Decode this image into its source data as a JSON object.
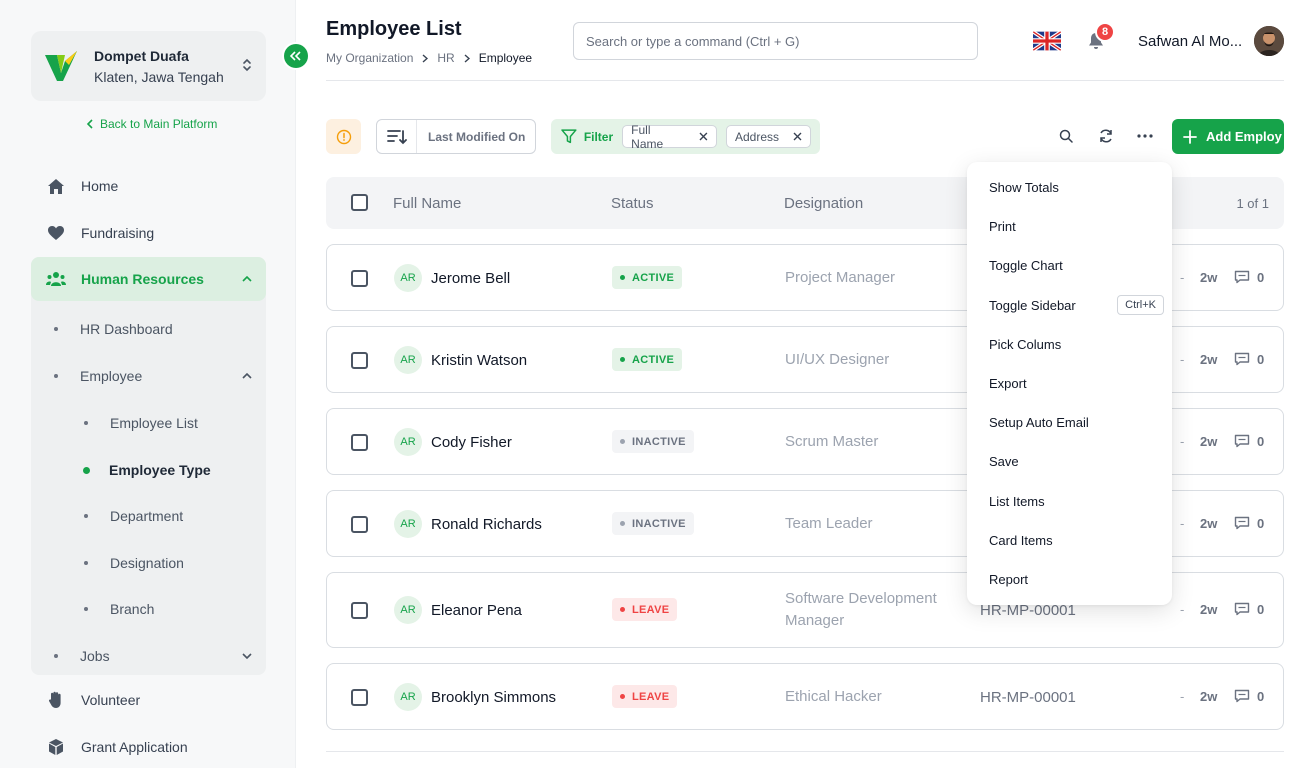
{
  "sidebar": {
    "org_name": "Dompet Duafa",
    "org_location": "Klaten, Jawa Tengah",
    "back_link": "Back to Main Platform",
    "nav": {
      "home": "Home",
      "fundraising": "Fundraising",
      "human_resources": "Human Resources",
      "hr_dashboard": "HR Dashboard",
      "employee": "Employee",
      "employee_list": "Employee List",
      "employee_type": "Employee Type",
      "department": "Department",
      "designation": "Designation",
      "branch": "Branch",
      "jobs": "Jobs",
      "volunteer": "Volunteer",
      "grant_application": "Grant Application"
    }
  },
  "header": {
    "title": "Employee List",
    "breadcrumb": [
      "My Organization",
      "HR",
      "Employee"
    ],
    "search_placeholder": "Search or type a command (Ctrl + G)",
    "notification_count": "8",
    "user_name": "Safwan Al Mo..."
  },
  "toolbar": {
    "sort_label": "Last Modified On",
    "filter_label": "Filter",
    "filter_chips": [
      "Full Name",
      "Address"
    ],
    "add_label": "Add Employ"
  },
  "table": {
    "columns": [
      "Full Name",
      "Status",
      "Designation"
    ],
    "pager": "1 of 1",
    "rows": [
      {
        "initials": "AR",
        "name": "Jerome Bell",
        "status": "ACTIVE",
        "designation": "Project Manager",
        "code": "",
        "dash": "-",
        "ago": "2w",
        "comments": "0"
      },
      {
        "initials": "AR",
        "name": "Kristin Watson",
        "status": "ACTIVE",
        "designation": "UI/UX Designer",
        "code": "",
        "dash": "-",
        "ago": "2w",
        "comments": "0"
      },
      {
        "initials": "AR",
        "name": "Cody Fisher",
        "status": "INACTIVE",
        "designation": "Scrum Master",
        "code": "",
        "dash": "-",
        "ago": "2w",
        "comments": "0"
      },
      {
        "initials": "AR",
        "name": "Ronald Richards",
        "status": "INACTIVE",
        "designation": "Team Leader",
        "code": "",
        "dash": "-",
        "ago": "2w",
        "comments": "0"
      },
      {
        "initials": "AR",
        "name": "Eleanor Pena",
        "status": "LEAVE",
        "designation": "Software Development Manager",
        "code": "HR-MP-00001",
        "dash": "-",
        "ago": "2w",
        "comments": "0"
      },
      {
        "initials": "AR",
        "name": "Brooklyn Simmons",
        "status": "LEAVE",
        "designation": "Ethical Hacker",
        "code": "HR-MP-00001",
        "dash": "-",
        "ago": "2w",
        "comments": "0"
      }
    ]
  },
  "menu": {
    "items": [
      "Show Totals",
      "Print",
      "Toggle Chart",
      "Toggle Sidebar",
      "Pick Colums",
      "Export",
      "Setup Auto Email",
      "Save",
      "List Items",
      "Card Items",
      "Report"
    ],
    "toggle_sidebar_shortcut": "Ctrl+K"
  },
  "colors": {
    "accent": "#16a34a",
    "accent_soft": "#e4f3e7",
    "danger": "#ef4444",
    "warning_soft": "#fdf0e0"
  }
}
